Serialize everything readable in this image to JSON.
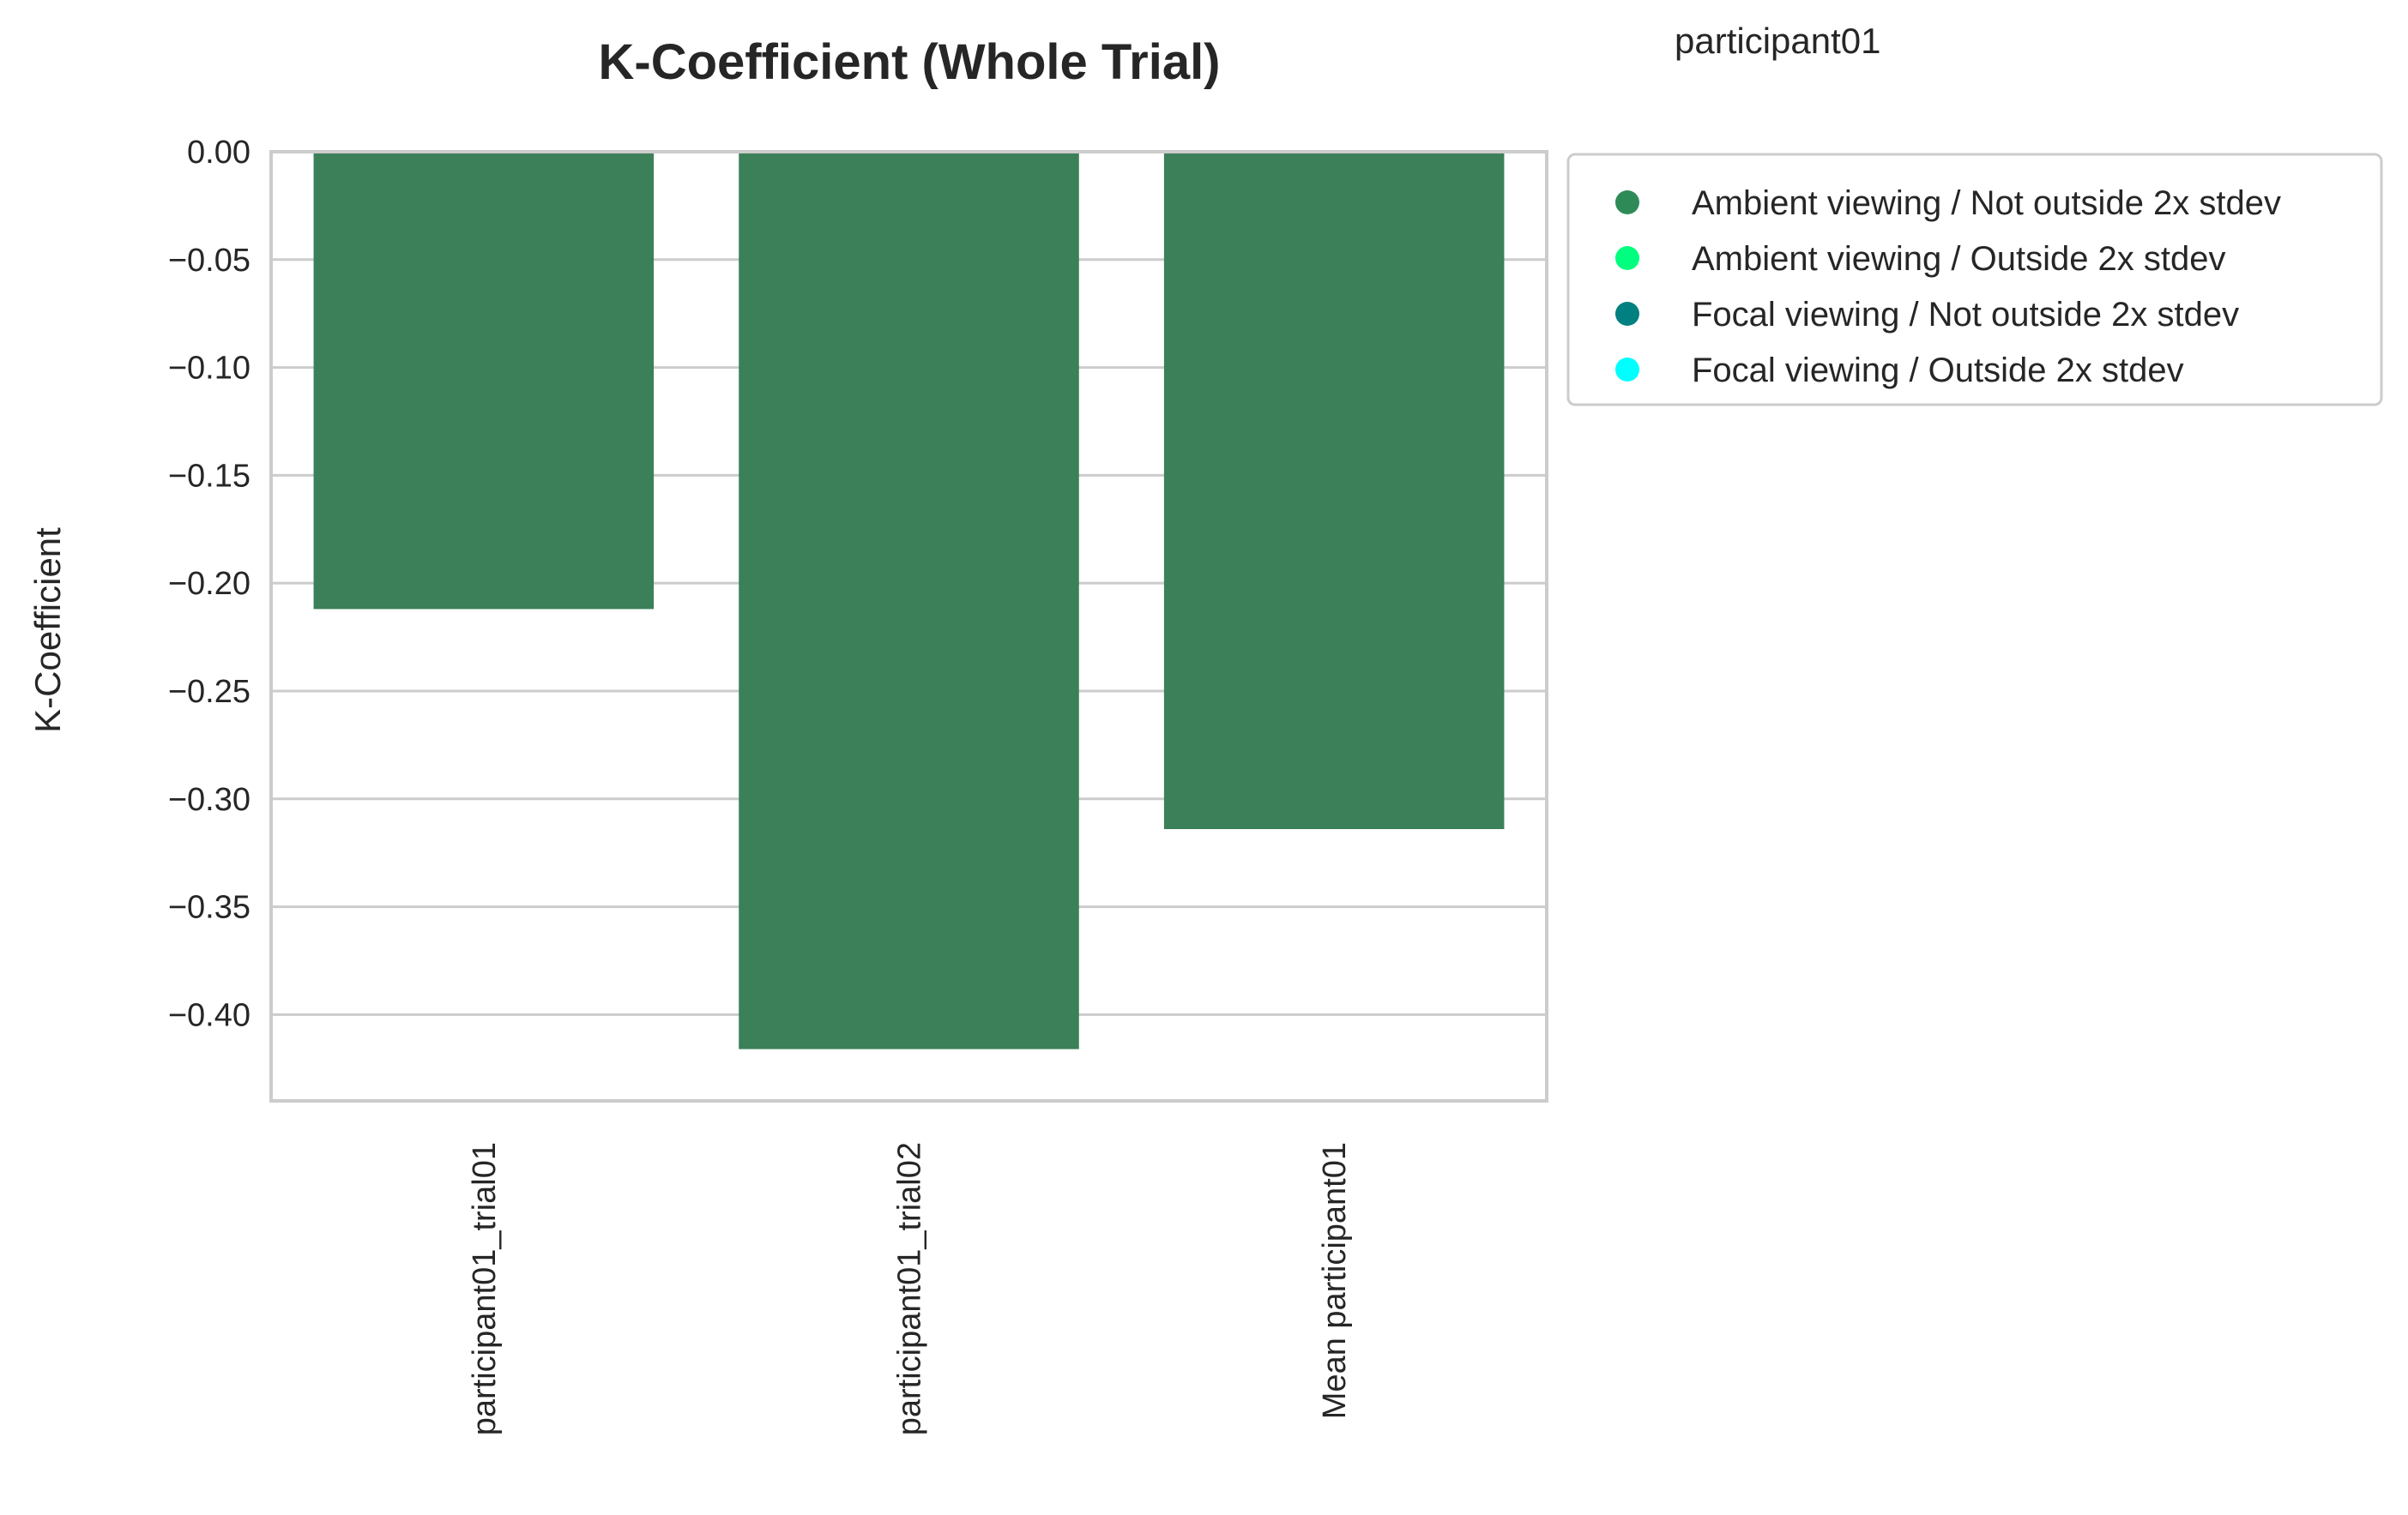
{
  "chart_data": {
    "type": "bar",
    "title": "K-Coefficient (Whole Trial)",
    "subtitle": "participant01",
    "xlabel": "",
    "ylabel": "K-Coefficient",
    "categories": [
      "participant01_trial01",
      "participant01_trial02",
      "Mean participant01"
    ],
    "values": [
      -0.212,
      -0.416,
      -0.314
    ],
    "bar_colors": [
      "#3b8058",
      "#3b8058",
      "#3b8058"
    ],
    "ylim": [
      -0.44,
      0.0
    ],
    "yticks": [
      0.0,
      -0.05,
      -0.1,
      -0.15,
      -0.2,
      -0.25,
      -0.3,
      -0.35,
      -0.4
    ],
    "ytick_labels": [
      "0.00",
      "−0.05",
      "−0.10",
      "−0.15",
      "−0.20",
      "−0.25",
      "−0.30",
      "−0.35",
      "−0.40"
    ],
    "grid": "horizontal",
    "legend_placement": "outside-top-right",
    "legend": [
      {
        "label": "Ambient viewing / Not outside 2x stdev",
        "color": "#2e8b57"
      },
      {
        "label": "Ambient viewing / Outside 2x stdev",
        "color": "#00ff7f"
      },
      {
        "label": "Focal viewing / Not outside 2x stdev",
        "color": "#008080"
      },
      {
        "label": "Focal viewing / Outside 2x stdev",
        "color": "#00ffff"
      }
    ]
  }
}
